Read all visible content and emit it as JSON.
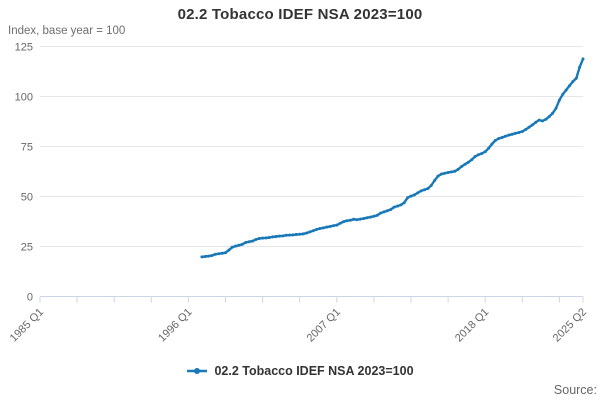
{
  "accent_color": "#1878b8",
  "grid_color": "#e6e6e6",
  "axis_color": "#ccd6eb",
  "label_color": "#666666",
  "source_label": "Source:",
  "chart_data": {
    "type": "line",
    "title": "02.2 Tobacco IDEF NSA 2023=100",
    "subtitle": "Index, base year = 100",
    "ylabel": "",
    "xlabel": "",
    "ylim": [
      0,
      125
    ],
    "y_ticks": [
      0,
      25,
      50,
      75,
      100,
      125
    ],
    "grid": true,
    "legend_position": "bottom",
    "x_axis": {
      "start_label": "1985 Q1",
      "end_label": "2025 Q2",
      "total_quarters": 161,
      "minor_tick_step_quarters": 11,
      "labeled_ticks": [
        {
          "quarter_index": 0,
          "label": "1985 Q1"
        },
        {
          "quarter_index": 44,
          "label": "1996 Q1"
        },
        {
          "quarter_index": 88,
          "label": "2007 Q1"
        },
        {
          "quarter_index": 132,
          "label": "2018 Q1"
        },
        {
          "quarter_index": 161,
          "label": "2025 Q2"
        }
      ]
    },
    "series": [
      {
        "name": "02.2 Tobacco IDEF NSA 2023=100",
        "color": "#1878b8",
        "first_point": "1997 Q1",
        "first_point_quarter_index": 48,
        "frequency": "quarterly",
        "values": [
          19.8,
          20.0,
          20.2,
          20.5,
          21.1,
          21.4,
          21.6,
          21.9,
          23.2,
          24.6,
          25.2,
          25.6,
          26.1,
          27.0,
          27.4,
          27.7,
          28.5,
          29.0,
          29.2,
          29.3,
          29.5,
          29.8,
          30.0,
          30.2,
          30.3,
          30.6,
          30.7,
          30.8,
          31.0,
          31.1,
          31.3,
          31.7,
          32.3,
          32.9,
          33.5,
          34.0,
          34.3,
          34.7,
          35.0,
          35.4,
          35.7,
          36.6,
          37.4,
          37.9,
          38.1,
          38.6,
          38.4,
          38.7,
          39.0,
          39.4,
          39.7,
          40.1,
          40.6,
          41.7,
          42.3,
          42.9,
          43.5,
          44.7,
          45.2,
          45.8,
          46.9,
          49.4,
          50.2,
          50.8,
          51.8,
          52.8,
          53.4,
          54.0,
          55.5,
          58.0,
          60.2,
          61.2,
          61.6,
          62.0,
          62.3,
          62.6,
          63.6,
          65.0,
          66.1,
          67.1,
          68.4,
          70.0,
          70.9,
          71.5,
          72.4,
          74.1,
          76.2,
          78.0,
          79.0,
          79.5,
          80.1,
          80.7,
          81.1,
          81.6,
          82.0,
          82.5,
          83.5,
          84.6,
          85.8,
          87.1,
          88.2,
          87.8,
          88.6,
          90.0,
          91.6,
          94.1,
          98.2,
          101.1,
          103.2,
          105.4,
          107.5,
          109.1,
          114.6,
          118.8
        ]
      }
    ]
  }
}
